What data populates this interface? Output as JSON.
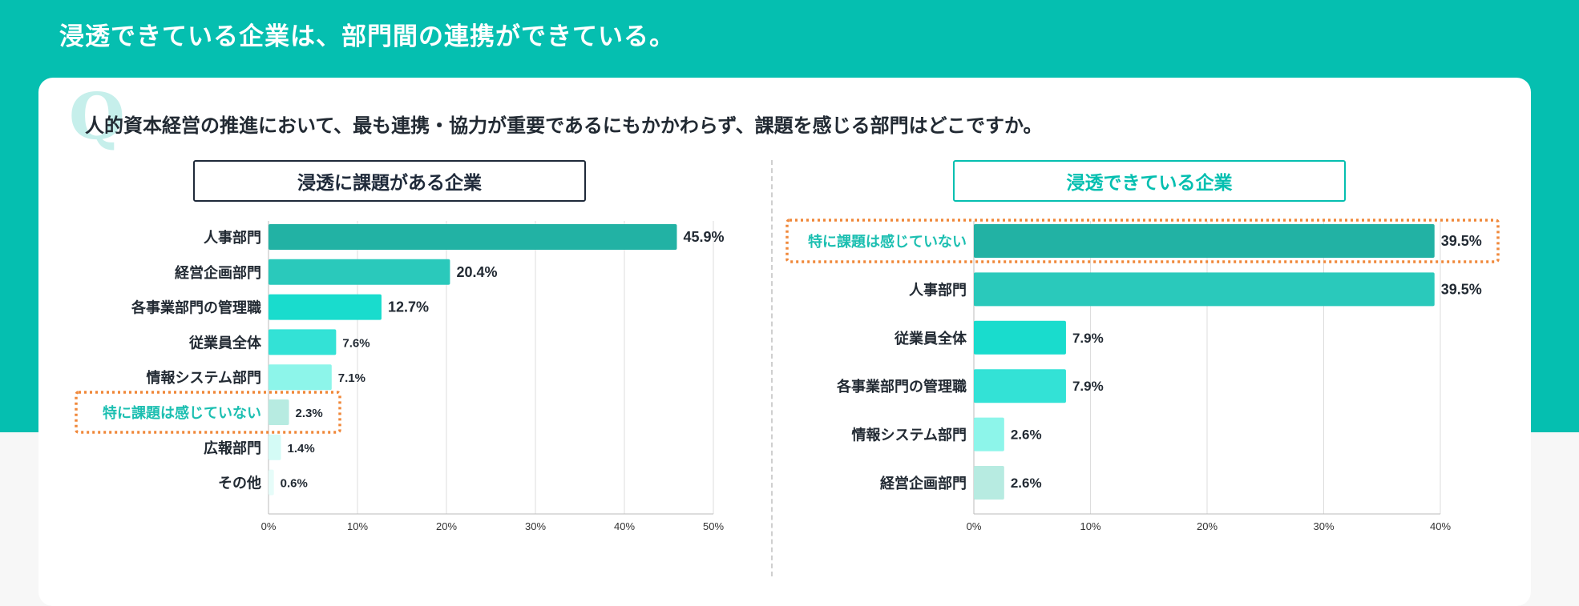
{
  "headline": "浸透できている企業は、部門間の連携ができている。",
  "question_mark": "Q",
  "question": "人的資本経営の推進において、最も連携・協力が重要であるにもかかわらず、課題を感じる部門はどこですか。",
  "chart_data": [
    {
      "type": "bar",
      "orientation": "horizontal",
      "title": "浸透に課題がある企業",
      "categories": [
        "人事部門",
        "経営企画部門",
        "各事業部門の管理職",
        "従業員全体",
        "情報システム部門",
        "特に課題は感じていない",
        "広報部門",
        "その他"
      ],
      "values": [
        45.9,
        20.4,
        12.7,
        7.6,
        7.1,
        2.3,
        1.4,
        0.6
      ],
      "value_labels": [
        "45.9%",
        "20.4%",
        "12.7%",
        "7.6%",
        "7.1%",
        "2.3%",
        "1.4%",
        "0.6%"
      ],
      "highlight": "特に課題は感じていない",
      "xlim": [
        0,
        50
      ],
      "ticks": [
        0,
        10,
        20,
        30,
        40,
        50
      ],
      "tick_labels": [
        "0%",
        "10%",
        "20%",
        "30%",
        "40%",
        "50%"
      ],
      "bar_colors": [
        "#22b2a4",
        "#2ac9bb",
        "#19dccd",
        "#33e2d6",
        "#8df5ea",
        "#b7ebe1",
        "#d4fbf6",
        "#e6fcf9"
      ],
      "grid": true
    },
    {
      "type": "bar",
      "orientation": "horizontal",
      "title": "浸透できている企業",
      "categories": [
        "特に課題は感じていない",
        "人事部門",
        "従業員全体",
        "各事業部門の管理職",
        "情報システム部門",
        "経営企画部門"
      ],
      "values": [
        39.5,
        39.5,
        7.9,
        7.9,
        2.6,
        2.6
      ],
      "value_labels": [
        "39.5%",
        "39.5%",
        "7.9%",
        "7.9%",
        "2.6%",
        "2.6%"
      ],
      "highlight": "特に課題は感じていない",
      "xlim": [
        0,
        40
      ],
      "ticks": [
        0,
        10,
        20,
        30,
        40
      ],
      "tick_labels": [
        "0%",
        "10%",
        "20%",
        "30%",
        "40%"
      ],
      "bar_colors": [
        "#22b2a4",
        "#2ac9bb",
        "#19dccd",
        "#33e2d6",
        "#8df5ea",
        "#b7ebe1"
      ],
      "grid": true
    }
  ],
  "colors": {
    "brand_teal": "#05bfb0",
    "highlight_text": "#1cbfb1",
    "highlight_box": "#f0883a",
    "text_dark": "#222a33"
  }
}
